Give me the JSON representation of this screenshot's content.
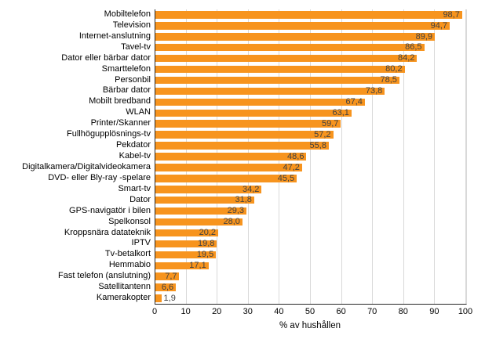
{
  "chart_data": {
    "type": "bar",
    "orientation": "horizontal",
    "title": "",
    "xlabel": "% av hushållen",
    "ylabel": "",
    "xlim": [
      0,
      100
    ],
    "x_ticks": [
      0,
      10,
      20,
      30,
      40,
      50,
      60,
      70,
      80,
      90,
      100
    ],
    "grid": "vertical-major",
    "legend": "none",
    "categories": [
      "Mobiltelefon",
      "Television",
      "Internet-anslutning",
      "Tavel-tv",
      "Dator eller bärbar dator",
      "Smarttelefon",
      "Personbil",
      "Bärbar dator",
      "Mobilt bredband",
      "WLAN",
      "Printer/Skanner",
      "Fullhögupplösnings-tv",
      "Pekdator",
      "Kabel-tv",
      "Digitalkamera/Digitalvideokamera",
      "DVD- eller Bly-ray -spelare",
      "Smart-tv",
      "Dator",
      "GPS-navigatör i bilen",
      "Spelkonsol",
      "Kroppsnära datateknik",
      "IPTV",
      "Tv-betalkort",
      "Hemmabio",
      "Fast telefon (anslutning)",
      "Satellitantenn",
      "Kamerakopter"
    ],
    "values": [
      98.7,
      94.7,
      89.9,
      86.5,
      84.2,
      80.2,
      78.5,
      73.8,
      67.4,
      63.1,
      59.7,
      57.2,
      55.8,
      48.6,
      47.2,
      45.5,
      34.2,
      31.8,
      29.3,
      28.0,
      20.2,
      19.8,
      19.5,
      17.1,
      7.7,
      6.6,
      1.9
    ],
    "value_labels": [
      "98,7",
      "94,7",
      "89,9",
      "86,5",
      "84,2",
      "80,2",
      "78,5",
      "73,8",
      "67,4",
      "63,1",
      "59,7",
      "57,2",
      "55,8",
      "48,6",
      "47,2",
      "45,5",
      "34,2",
      "31,8",
      "29,3",
      "28,0",
      "20,2",
      "19,8",
      "19,5",
      "17,1",
      "7,7",
      "6,6",
      "1,9"
    ],
    "colors": {
      "bar": "#F7941E",
      "gridline": "#D9D9D9",
      "axis": "#262626",
      "value_label": "#404040",
      "text": "#000000",
      "background": "#FFFFFF"
    }
  }
}
